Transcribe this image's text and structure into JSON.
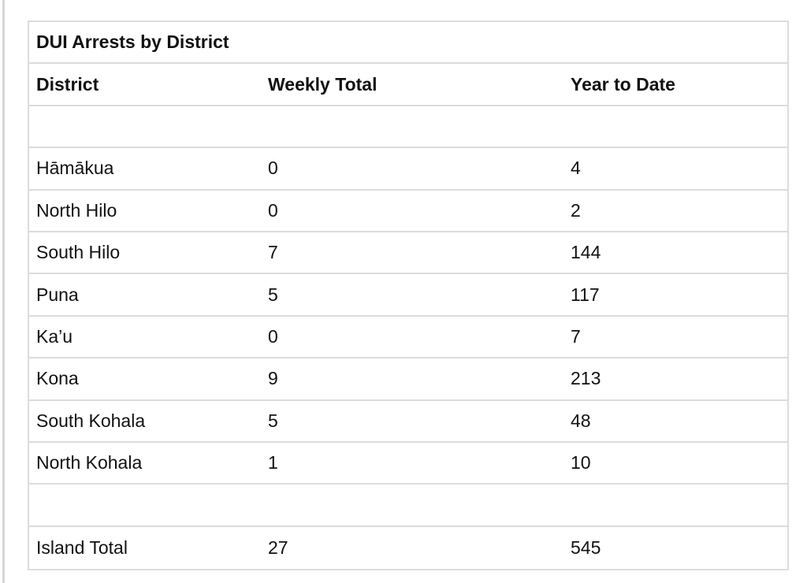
{
  "table": {
    "title": "DUI Arrests by District",
    "headers": [
      "District",
      "Weekly Total",
      "Year to Date"
    ],
    "rows": [
      [
        "",
        "",
        ""
      ],
      [
        "Hāmākua",
        "0",
        "4"
      ],
      [
        "North Hilo",
        "0",
        "2"
      ],
      [
        "South Hilo",
        "7",
        "144"
      ],
      [
        "Puna",
        "5",
        "117"
      ],
      [
        "Ka’u",
        "0",
        "7"
      ],
      [
        "Kona",
        "9",
        "213"
      ],
      [
        "South Kohala",
        "5",
        "48"
      ],
      [
        "North Kohala",
        "1",
        "10"
      ],
      [
        "",
        "",
        ""
      ],
      [
        "Island Total",
        "27",
        "545"
      ]
    ]
  }
}
